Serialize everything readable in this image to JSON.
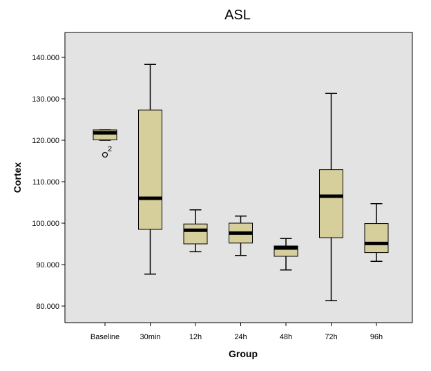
{
  "chart_data": {
    "type": "boxplot",
    "title": "ASL",
    "xlabel": "Group",
    "ylabel": "Cortex",
    "ylim": [
      76.0,
      146.0
    ],
    "yticks": [
      80,
      90,
      100,
      110,
      120,
      130,
      140
    ],
    "ytick_labels": [
      "80.000",
      "90.000",
      "100.000",
      "110.000",
      "120.000",
      "130.000",
      "140.000"
    ],
    "grid": false,
    "colors": {
      "plot_bg": "#e3e3e3",
      "box_fill": "#d6cf9c",
      "stroke": "#000000"
    },
    "categories": [
      "Baseline",
      "30min",
      "12h",
      "24h",
      "48h",
      "72h",
      "96h"
    ],
    "boxes": [
      {
        "min": 120.0,
        "q1": 120.1,
        "median": 121.8,
        "q3": 122.5,
        "max": 122.5,
        "outliers": [
          {
            "value": 116.5,
            "label": "2"
          }
        ]
      },
      {
        "min": 87.7,
        "q1": 98.5,
        "median": 106.0,
        "q3": 127.3,
        "max": 138.3,
        "outliers": []
      },
      {
        "min": 93.1,
        "q1": 95.0,
        "median": 98.3,
        "q3": 99.8,
        "max": 103.2,
        "outliers": []
      },
      {
        "min": 92.2,
        "q1": 95.2,
        "median": 97.6,
        "q3": 100.0,
        "max": 101.7,
        "outliers": []
      },
      {
        "min": 88.7,
        "q1": 92.0,
        "median": 94.0,
        "q3": 94.5,
        "max": 96.3,
        "outliers": []
      },
      {
        "min": 81.3,
        "q1": 96.5,
        "median": 106.5,
        "q3": 112.9,
        "max": 131.3,
        "outliers": []
      },
      {
        "min": 90.8,
        "q1": 92.9,
        "median": 95.1,
        "q3": 99.9,
        "max": 104.7,
        "outliers": []
      }
    ]
  }
}
